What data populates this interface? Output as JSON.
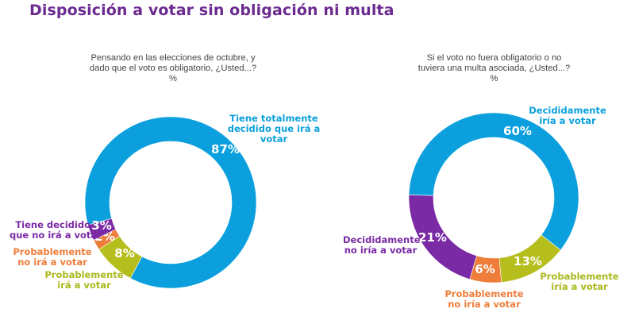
{
  "title": "Disposición a votar sin obligación ni multa",
  "colors": {
    "title": "#6b2a90",
    "blue": "#0ba0dd",
    "purple": "#7b2aa5",
    "orange": "#ee7d3a",
    "green": "#b6be1e"
  },
  "chart_data": [
    {
      "type": "pie",
      "subtype": "donut",
      "question_lines": [
        "Pensando en las elecciones de octubre, y",
        "dado que el voto es obligatorio, ¿Usted...?",
        "%"
      ],
      "unit": "%",
      "slices": [
        {
          "label_lines": [
            "Tiene totalmente",
            "decidido que irá a",
            "votar"
          ],
          "value": 87,
          "display": "87%",
          "color": "#0ba0dd"
        },
        {
          "label_lines": [
            "Probablemente",
            "irá a votar"
          ],
          "value": 8,
          "display": "8%",
          "color": "#b6be1e"
        },
        {
          "label_lines": [
            "Probablemente",
            "no irá a votar"
          ],
          "value": 2,
          "display": "2%",
          "color": "#ee7d3a"
        },
        {
          "label_lines": [
            "Tiene decidido",
            "que no irá a votar"
          ],
          "value": 3,
          "display": "3%",
          "color": "#7b2aa5"
        }
      ]
    },
    {
      "type": "pie",
      "subtype": "donut",
      "question_lines": [
        "Si el voto no fuera obligatorio o no",
        "tuviera una multa asociada, ¿Usted...?",
        "%"
      ],
      "unit": "%",
      "slices": [
        {
          "label_lines": [
            "Decididamente",
            "iría a votar"
          ],
          "value": 60,
          "display": "60%",
          "color": "#0ba0dd"
        },
        {
          "label_lines": [
            "Probablemente",
            "iría a votar"
          ],
          "value": 13,
          "display": "13%",
          "color": "#b6be1e"
        },
        {
          "label_lines": [
            "Probablemente",
            "no iría a votar"
          ],
          "value": 6,
          "display": "6%",
          "color": "#ee7d3a"
        },
        {
          "label_lines": [
            "Decididamente",
            "no iría a votar"
          ],
          "value": 21,
          "display": "21%",
          "color": "#7b2aa5"
        }
      ]
    }
  ]
}
